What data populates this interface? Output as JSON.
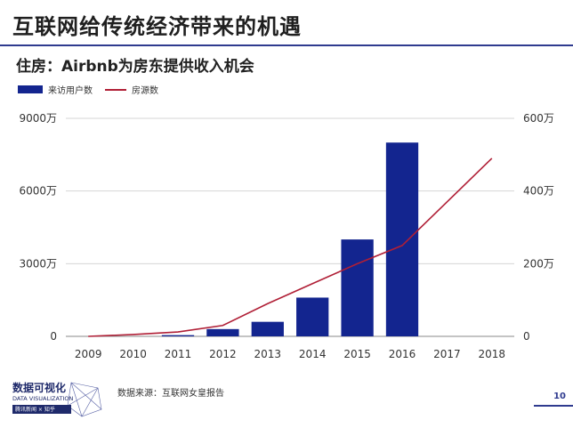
{
  "title": "互联网给传统经济带来的机遇",
  "subtitle": "住房：Airbnb为房东提供收入机会",
  "chart_data": {
    "type": "bar+line",
    "categories": [
      "2009",
      "2010",
      "2011",
      "2012",
      "2013",
      "2014",
      "2015",
      "2016",
      "2017",
      "2018"
    ],
    "series": [
      {
        "name": "来访用户数",
        "type": "bar",
        "axis": "left",
        "color": "#13258f",
        "values": [
          0,
          0,
          50,
          300,
          600,
          1600,
          4000,
          8000,
          null,
          null
        ]
      },
      {
        "name": "房源数",
        "type": "line",
        "axis": "right",
        "color": "#b01f36",
        "values": [
          0,
          5,
          12,
          30,
          90,
          145,
          200,
          250,
          370,
          490
        ]
      }
    ],
    "left_axis": {
      "min": 0,
      "max": 9000,
      "ticks": [
        0,
        3000,
        6000,
        9000
      ],
      "tick_labels": [
        "0",
        "3000万",
        "6000万",
        "9000万"
      ]
    },
    "right_axis": {
      "min": 0,
      "max": 600,
      "ticks": [
        0,
        200,
        400,
        600
      ],
      "tick_labels": [
        "0",
        "200万",
        "400万",
        "600万"
      ]
    },
    "legend_position": "top-left"
  },
  "footer": {
    "source": "数据来源：互联网女皇报告",
    "page_number": "10",
    "logo_title": "数据可视化",
    "logo_subtitle": "DATA VISUALIZATION",
    "logo_tag": "腾讯新闻 × 知乎"
  }
}
